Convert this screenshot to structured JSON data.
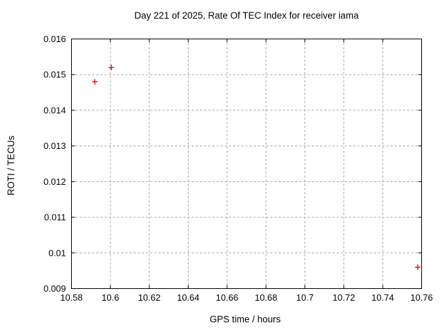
{
  "window": {
    "background_color": "#ffffff"
  },
  "chart_data": {
    "type": "scatter",
    "title": "Day 221 of 2025, Rate Of TEC Index for receiver iama",
    "xlabel": "GPS time / hours",
    "ylabel": "ROTI / TECUs",
    "xlim": [
      10.58,
      10.76
    ],
    "ylim": [
      0.009,
      0.016
    ],
    "grid": true,
    "grid_style": "dashed",
    "legend": "none",
    "x_ticks": [
      {
        "value": 10.58,
        "label": "10.58"
      },
      {
        "value": 10.6,
        "label": "10.6"
      },
      {
        "value": 10.62,
        "label": "10.62"
      },
      {
        "value": 10.64,
        "label": "10.64"
      },
      {
        "value": 10.66,
        "label": "10.66"
      },
      {
        "value": 10.68,
        "label": "10.68"
      },
      {
        "value": 10.7,
        "label": "10.7"
      },
      {
        "value": 10.72,
        "label": "10.72"
      },
      {
        "value": 10.74,
        "label": "10.74"
      },
      {
        "value": 10.76,
        "label": "10.76"
      }
    ],
    "y_ticks": [
      {
        "value": 0.009,
        "label": "0.009"
      },
      {
        "value": 0.01,
        "label": "0.01"
      },
      {
        "value": 0.011,
        "label": "0.011"
      },
      {
        "value": 0.012,
        "label": "0.012"
      },
      {
        "value": 0.013,
        "label": "0.013"
      },
      {
        "value": 0.014,
        "label": "0.014"
      },
      {
        "value": 0.015,
        "label": "0.015"
      },
      {
        "value": 0.016,
        "label": "0.016"
      }
    ],
    "series": [
      {
        "name": "ROTI",
        "marker": "plus",
        "color": "#ff0000",
        "points": [
          {
            "x": 10.592,
            "y": 0.0148
          },
          {
            "x": 10.6005,
            "y": 0.0152
          },
          {
            "x": 10.758,
            "y": 0.0096
          }
        ]
      }
    ],
    "colors": {
      "border": "#000000",
      "grid": "#a0a0a0",
      "text": "#000000",
      "background": "#ffffff"
    }
  }
}
